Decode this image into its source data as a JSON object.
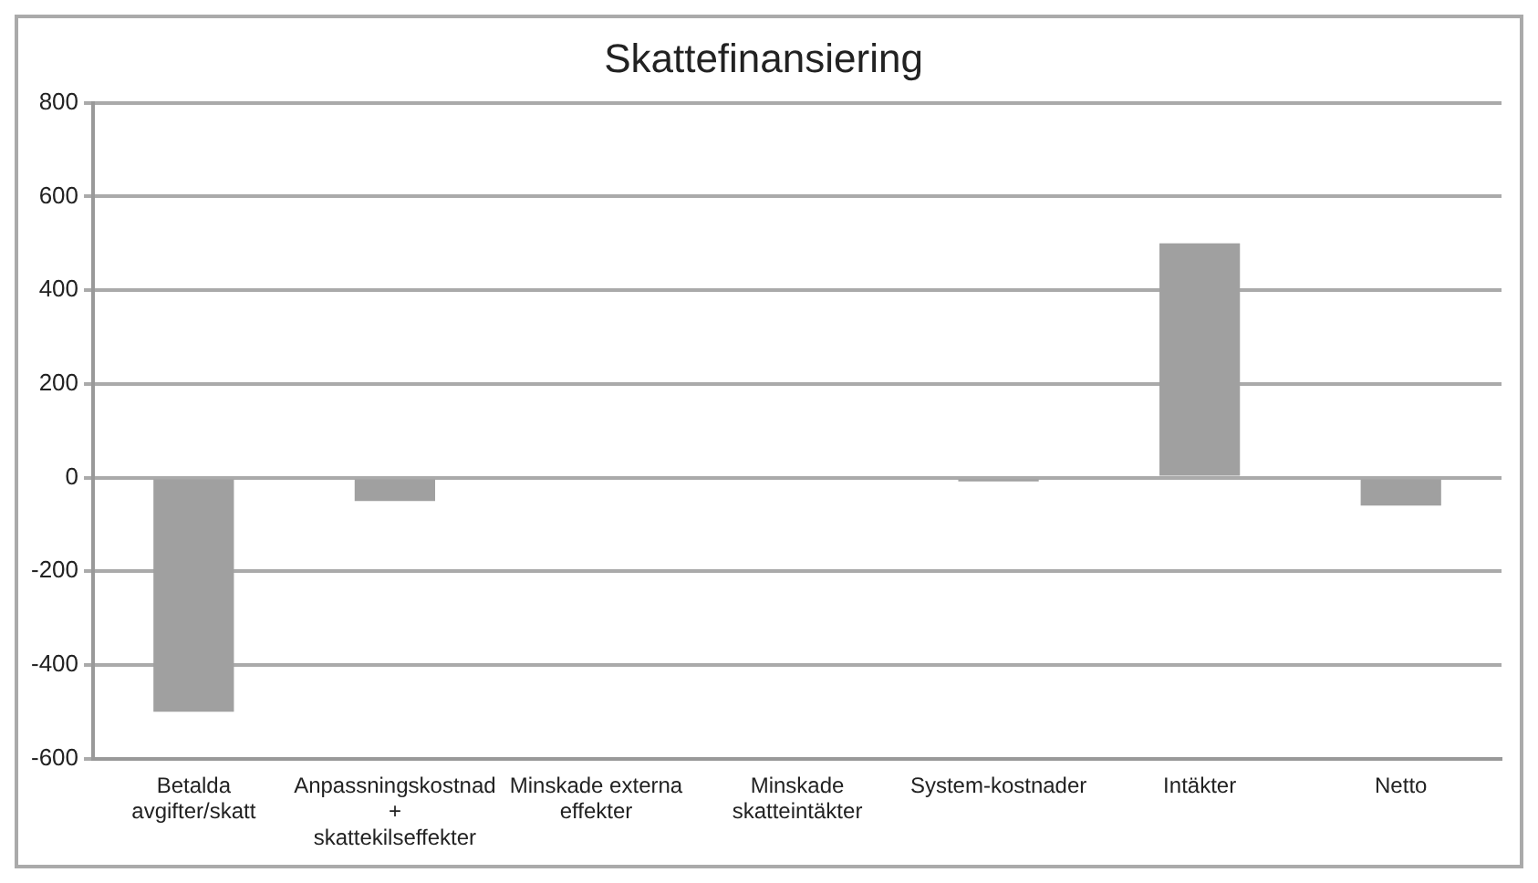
{
  "chart_data": {
    "type": "bar",
    "title": "Skattefinansiering",
    "categories": [
      "Betalda avgifter/skatt",
      "Anpassningskostnad + skattekilseffekter",
      "Minskade externa effekter",
      "Minskade skatteintäkter",
      "System-kostnader",
      "Intäkter",
      "Netto"
    ],
    "values": [
      -500,
      -50,
      0,
      0,
      -8,
      500,
      -60
    ],
    "color": "#a0a0a0",
    "ylim": [
      -600,
      800
    ],
    "yticks": [
      -600,
      -400,
      -200,
      0,
      200,
      400,
      600,
      800
    ],
    "grid": "y",
    "legend": false
  }
}
